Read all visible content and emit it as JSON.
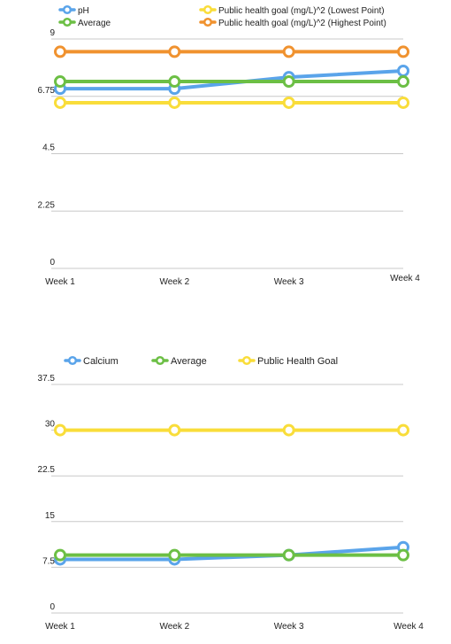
{
  "chart_data": [
    {
      "type": "line",
      "title": "",
      "xlabel": "",
      "ylabel": "",
      "categories": [
        "Week 1",
        "Week 2",
        "Week 3",
        "Week 4"
      ],
      "ylim": [
        0,
        9
      ],
      "yticks": [
        "0",
        "2.25",
        "4.5",
        "6.75",
        "9"
      ],
      "grid": true,
      "legend_position": "top",
      "series": [
        {
          "name": "pH",
          "color": "#5aa4ea",
          "values": [
            7.05,
            7.05,
            7.5,
            7.75
          ]
        },
        {
          "name": "Average",
          "color": "#6cbf45",
          "values": [
            7.33,
            7.33,
            7.33,
            7.33
          ]
        },
        {
          "name": "Public health goal (mg/L)^2 (Lowest Point)",
          "color": "#f9dd3a",
          "values": [
            6.5,
            6.5,
            6.5,
            6.5
          ]
        },
        {
          "name": "Public health goal (mg/L)^2 (Highest Point)",
          "color": "#f0922f",
          "values": [
            8.5,
            8.5,
            8.5,
            8.5
          ]
        }
      ]
    },
    {
      "type": "line",
      "title": "",
      "xlabel": "",
      "ylabel": "",
      "categories": [
        "Week 1",
        "Week 2",
        "Week 3",
        "Week 4"
      ],
      "ylim": [
        0,
        37.5
      ],
      "yticks": [
        "0",
        "7.5",
        "15",
        "22.5",
        "30",
        "37.5"
      ],
      "grid": true,
      "legend_position": "top",
      "series": [
        {
          "name": "Calcium",
          "color": "#5aa4ea",
          "values": [
            8.8,
            8.8,
            9.5,
            10.8
          ]
        },
        {
          "name": "Average",
          "color": "#6cbf45",
          "values": [
            9.5,
            9.5,
            9.5,
            9.5
          ]
        },
        {
          "name": "Public Health Goal",
          "color": "#f9dd3a",
          "values": [
            30,
            30,
            30,
            30
          ]
        }
      ]
    }
  ]
}
